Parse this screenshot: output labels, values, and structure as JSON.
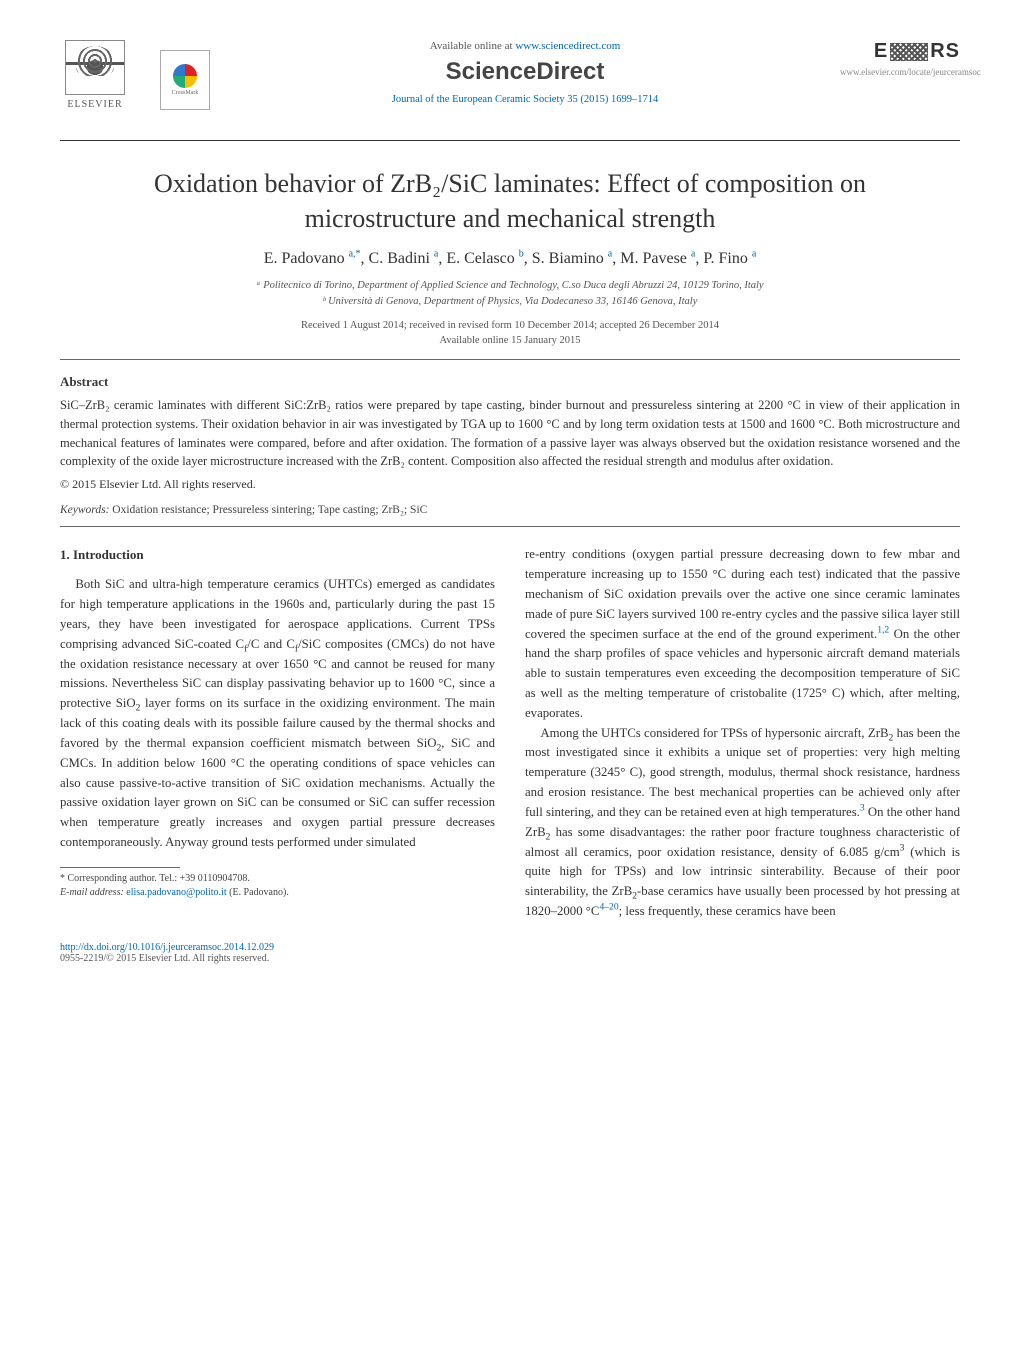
{
  "header": {
    "elsevier_label": "ELSEVIER",
    "crossmark_label": "CrossMark",
    "available_prefix": "Available online at ",
    "available_url": "www.sciencedirect.com",
    "sciencedirect": "ScienceDirect",
    "journal_ref": "Journal of the European Ceramic Society 35 (2015) 1699–1714",
    "ecers_text": "E≋RS",
    "locate_url": "www.elsevier.com/locate/jeurceramsoc"
  },
  "title": "Oxidation behavior of ZrB₂/SiC laminates: Effect of composition on microstructure and mechanical strength",
  "authors_html": "E. Padovano <sup class='sup-link'>a,</sup><sup class='sup-link'>*</sup>, C. Badini <sup class='sup-link'>a</sup>, E. Celasco <sup class='sup-link'>b</sup>, S. Biamino <sup class='sup-link'>a</sup>, M. Pavese <sup class='sup-link'>a</sup>, P. Fino <sup class='sup-link'>a</sup>",
  "affiliations": {
    "a": "ᵃ Politecnico di Torino, Department of Applied Science and Technology, C.so Duca degli Abruzzi 24, 10129 Torino, Italy",
    "b": "ᵇ Università di Genova, Department of Physics, Via Dodecaneso 33, 16146 Genova, Italy"
  },
  "dates": {
    "line1": "Received 1 August 2014; received in revised form 10 December 2014; accepted 26 December 2014",
    "line2": "Available online 15 January 2015"
  },
  "abstract": {
    "heading": "Abstract",
    "text": "SiC–ZrB₂ ceramic laminates with different SiC:ZrB₂ ratios were prepared by tape casting, binder burnout and pressureless sintering at 2200 °C in view of their application in thermal protection systems. Their oxidation behavior in air was investigated by TGA up to 1600 °C and by long term oxidation tests at 1500 and 1600 °C. Both microstructure and mechanical features of laminates were compared, before and after oxidation. The formation of a passive layer was always observed but the oxidation resistance worsened and the complexity of the oxide layer microstructure increased with the ZrB₂ content. Composition also affected the residual strength and modulus after oxidation.",
    "copyright": "© 2015 Elsevier Ltd. All rights reserved."
  },
  "keywords": {
    "label": "Keywords:",
    "text": " Oxidation resistance; Pressureless sintering; Tape casting; ZrB₂; SiC"
  },
  "section1": {
    "heading": "1.  Introduction",
    "para1_html": "Both SiC and ultra-high temperature ceramics (UHTCs) emerged as candidates for high temperature applications in the 1960s and, particularly during the past 15 years, they have been investigated for aerospace applications. Current TPSs comprising advanced SiC-coated C<sub>f</sub>/C and C<sub>f</sub>/SiC composites (CMCs) do not have the oxidation resistance necessary at over 1650 °C and cannot be reused for many missions. Nevertheless SiC can display passivating behavior up to 1600 °C, since a protective SiO<sub>2</sub> layer forms on its surface in the oxidizing environment. The main lack of this coating deals with its possible failure caused by the thermal shocks and favored by the thermal expansion coefficient mismatch between SiO<sub>2</sub>, SiC and CMCs. In addition below 1600 °C the operating conditions of space vehicles can also cause passive-to-active transition of SiC oxidation mechanisms. Actually the passive oxidation layer grown on SiC can be consumed or SiC can suffer recession when temperature greatly increases and oxygen partial pressure decreases contemporaneously. Anyway ground tests performed under simulated",
    "para2_html": "re-entry conditions (oxygen partial pressure decreasing down to few mbar and temperature increasing up to 1550 °C during each test) indicated that the passive mechanism of SiC oxidation prevails over the active one since ceramic laminates made of pure SiC layers survived 100 re-entry cycles and the passive silica layer still covered the specimen surface at the end of the ground experiment.<sup class='ref-link'>1,2</sup> On the other hand the sharp profiles of space vehicles and hypersonic aircraft demand materials able to sustain temperatures even exceeding the decomposition temperature of SiC as well as the melting temperature of cristobalite (1725° C) which, after melting, evaporates.",
    "para3_html": "Among the UHTCs considered for TPSs of hypersonic aircraft, ZrB<sub>2</sub> has been the most investigated since it exhibits a unique set of properties: very high melting temperature (3245° C), good strength, modulus, thermal shock resistance, hardness and erosion resistance. The best mechanical properties can be achieved only after full sintering, and they can be retained even at high temperatures.<sup class='ref-link'>3</sup> On the other hand ZrB<sub>2</sub> has some disadvantages: the rather poor fracture toughness characteristic of almost all ceramics, poor oxidation resistance, density of 6.085 g/cm<sup>3</sup> (which is quite high for TPSs) and low intrinsic sinterability. Because of their poor sinterability, the ZrB<sub>2</sub>-base ceramics have usually been processed by hot pressing at 1820–2000 °C<sup class='ref-link'>4–20</sup>; less frequently, these ceramics have been"
  },
  "footnote": {
    "corr": "* Corresponding author. Tel.: +39 0110904708.",
    "email_label": "E-mail address: ",
    "email": "elisa.padovano@polito.it",
    "email_suffix": " (E. Padovano)."
  },
  "footer": {
    "doi": "http://dx.doi.org/10.1016/j.jeurceramsoc.2014.12.029",
    "issn": "0955-2219/© 2015 Elsevier Ltd. All rights reserved."
  },
  "colors": {
    "link": "#0066aa",
    "text": "#333333",
    "rule": "#333333"
  }
}
